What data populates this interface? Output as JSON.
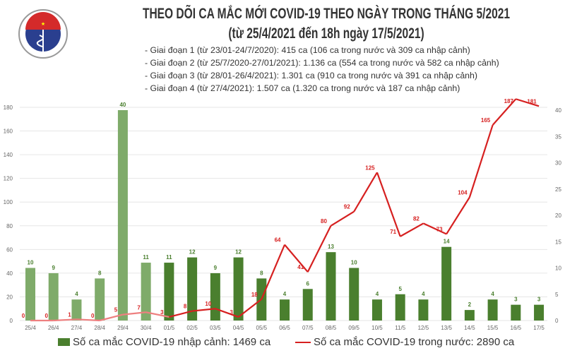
{
  "header": {
    "title": "THEO DÕI CA MẮC MỚI COVID-19 THEO NGÀY TRONG THÁNG 5/2021",
    "subtitle": "(từ 25/4/2021 đến 18h ngày 17/5/2021)",
    "notes": [
      "- Giai đoạn 1 (từ 23/01-24/7/2020): 415 ca (106 ca trong nước và 309 ca nhập cảnh)",
      "- Giai đoạn 2 (từ 25/7/2020-27/01/2021): 1.136 ca (554 ca trong nước và 582 ca nhập cảnh)",
      "- Giai đoạn 3 (từ 28/01-26/4/2021): 1.301 ca (910 ca trong nước và 391 ca nhập cảnh)",
      "- Giai đoạn 4 (từ 27/4/2021): 1.507 ca (1.320 ca trong nước và 187 ca nhập cảnh)"
    ],
    "logo_text": "BỘ Y TẾ MINISTRY OF HEALTH"
  },
  "chart_data": {
    "type": "bar+line",
    "categories": [
      "25/4",
      "26/4",
      "27/4",
      "28/4",
      "29/4",
      "30/4",
      "01/5",
      "02/5",
      "03/5",
      "04/5",
      "05/5",
      "06/5",
      "07/5",
      "08/5",
      "09/5",
      "10/5",
      "11/5",
      "12/5",
      "13/5",
      "14/5",
      "15/5",
      "16/5",
      "17/5"
    ],
    "series": [
      {
        "name": "Số ca mắc COVID-19 nhập cảnh: 1469 ca",
        "type": "bar",
        "axis": "right",
        "values": [
          10,
          9,
          4,
          8,
          40,
          11,
          11,
          12,
          9,
          12,
          8,
          4,
          6,
          13,
          10,
          4,
          5,
          4,
          14,
          2,
          4,
          3,
          3
        ],
        "color": "#4a7f2e",
        "color_early": "#7fab6a"
      },
      {
        "name": "Số ca mắc COVID-19 trong nước: 2890 ca",
        "type": "line",
        "axis": "left",
        "values": [
          0,
          0,
          1,
          0,
          5,
          7,
          3,
          8,
          10,
          3,
          18,
          64,
          41,
          80,
          92,
          125,
          71,
          82,
          73,
          104,
          165,
          187,
          181
        ],
        "color": "#d62020",
        "color_early": "#ee8080"
      }
    ],
    "left_ylim": [
      0,
      180
    ],
    "left_ticks": [
      0,
      20,
      40,
      60,
      80,
      100,
      120,
      140,
      160,
      180
    ],
    "right_ylim": [
      0,
      40
    ],
    "right_ticks": [
      0,
      5,
      10,
      15,
      20,
      25,
      30,
      35,
      40
    ],
    "grid": true,
    "legend": "bottom"
  }
}
